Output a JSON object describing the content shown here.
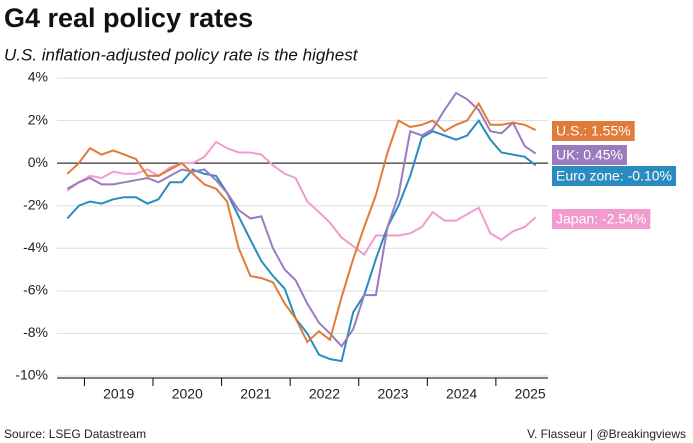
{
  "chart_data": {
    "type": "line",
    "title": "G4 real policy rates",
    "subtitle": "U.S. inflation-adjusted policy rate is the highest",
    "source": "Source: LSEG Datastream",
    "credit": "V. Flasseur | @Breakingviews",
    "x": [
      2018.75,
      2018.92,
      2019.08,
      2019.25,
      2019.42,
      2019.58,
      2019.75,
      2019.92,
      2020.08,
      2020.25,
      2020.42,
      2020.58,
      2020.75,
      2020.92,
      2021.08,
      2021.25,
      2021.42,
      2021.58,
      2021.75,
      2021.92,
      2022.08,
      2022.25,
      2022.42,
      2022.58,
      2022.75,
      2022.92,
      2023.08,
      2023.25,
      2023.42,
      2023.58,
      2023.75,
      2023.92,
      2024.08,
      2024.25,
      2024.42,
      2024.58,
      2024.75,
      2024.92,
      2025.08,
      2025.25,
      2025.42,
      2025.58
    ],
    "xlim": [
      2018.6,
      2025.76
    ],
    "xticks": [
      {
        "value": 2019.5,
        "label": "2019"
      },
      {
        "value": 2020.5,
        "label": "2020"
      },
      {
        "value": 2021.5,
        "label": "2021"
      },
      {
        "value": 2022.5,
        "label": "2022"
      },
      {
        "value": 2023.5,
        "label": "2023"
      },
      {
        "value": 2024.5,
        "label": "2024"
      },
      {
        "value": 2025.5,
        "label": "2025"
      }
    ],
    "ylim": [
      -10,
      4
    ],
    "yticks": [
      {
        "value": -10,
        "label": "-10%"
      },
      {
        "value": -8,
        "label": "-8%"
      },
      {
        "value": -6,
        "label": "-6%"
      },
      {
        "value": -4,
        "label": "-4%"
      },
      {
        "value": -2,
        "label": "-2%"
      },
      {
        "value": 0,
        "label": "0%"
      },
      {
        "value": 2,
        "label": "2%"
      },
      {
        "value": 4,
        "label": "4%"
      }
    ],
    "grid": true,
    "series": [
      {
        "name": "U.S.: 1.55%",
        "color": "#e07b39",
        "values": [
          -0.5,
          0,
          0.7,
          0.4,
          0.6,
          0.4,
          0.2,
          -0.6,
          -0.6,
          -0.3,
          0,
          -0.5,
          -1.0,
          -1.2,
          -1.8,
          -4.0,
          -5.3,
          -5.4,
          -5.6,
          -6.6,
          -7.3,
          -8.4,
          -7.9,
          -8.3,
          -6.3,
          -4.5,
          -3.0,
          -1.5,
          0.5,
          2.0,
          1.7,
          1.8,
          2.0,
          1.5,
          1.8,
          2.0,
          2.8,
          1.8,
          1.8,
          1.9,
          1.8,
          1.55
        ]
      },
      {
        "name": "UK: 0.45%",
        "color": "#9b7bbf",
        "values": [
          -1.2,
          -0.9,
          -0.7,
          -1.0,
          -1.0,
          -0.9,
          -0.8,
          -0.7,
          -0.9,
          -0.6,
          -0.3,
          -0.4,
          -0.3,
          -0.8,
          -1.4,
          -2.2,
          -2.6,
          -2.5,
          -4.0,
          -5.0,
          -5.5,
          -6.6,
          -7.5,
          -8.0,
          -8.6,
          -7.8,
          -6.2,
          -6.2,
          -3.0,
          -1.5,
          1.5,
          1.3,
          1.6,
          2.5,
          3.3,
          3.0,
          2.5,
          1.5,
          1.4,
          1.9,
          0.8,
          0.45
        ]
      },
      {
        "name": "Euro zone: -0.10%",
        "color": "#2a8bbf",
        "values": [
          -2.6,
          -2.0,
          -1.8,
          -1.9,
          -1.7,
          -1.6,
          -1.6,
          -1.9,
          -1.7,
          -0.9,
          -0.9,
          -0.3,
          -0.5,
          -0.6,
          -1.4,
          -2.5,
          -3.6,
          -4.6,
          -5.3,
          -5.9,
          -7.3,
          -8.0,
          -9.0,
          -9.2,
          -9.3,
          -7.0,
          -6.2,
          -4.5,
          -3.0,
          -2.0,
          -0.6,
          1.2,
          1.5,
          1.3,
          1.1,
          1.3,
          2.0,
          1.1,
          0.5,
          0.4,
          0.3,
          -0.1
        ]
      },
      {
        "name": "Japan: -2.54%",
        "color": "#f29bcf",
        "values": [
          -1.3,
          -0.9,
          -0.6,
          -0.7,
          -0.4,
          -0.5,
          -0.5,
          -0.3,
          -0.6,
          -0.2,
          0,
          0,
          0.3,
          1.0,
          0.7,
          0.5,
          0.5,
          0.4,
          -0.1,
          -0.5,
          -0.7,
          -1.8,
          -2.3,
          -2.8,
          -3.5,
          -3.9,
          -4.3,
          -3.4,
          -3.4,
          -3.4,
          -3.3,
          -3.0,
          -2.3,
          -2.7,
          -2.7,
          -2.4,
          -2.1,
          -3.3,
          -3.6,
          -3.2,
          -3.0,
          -2.54
        ]
      }
    ]
  }
}
